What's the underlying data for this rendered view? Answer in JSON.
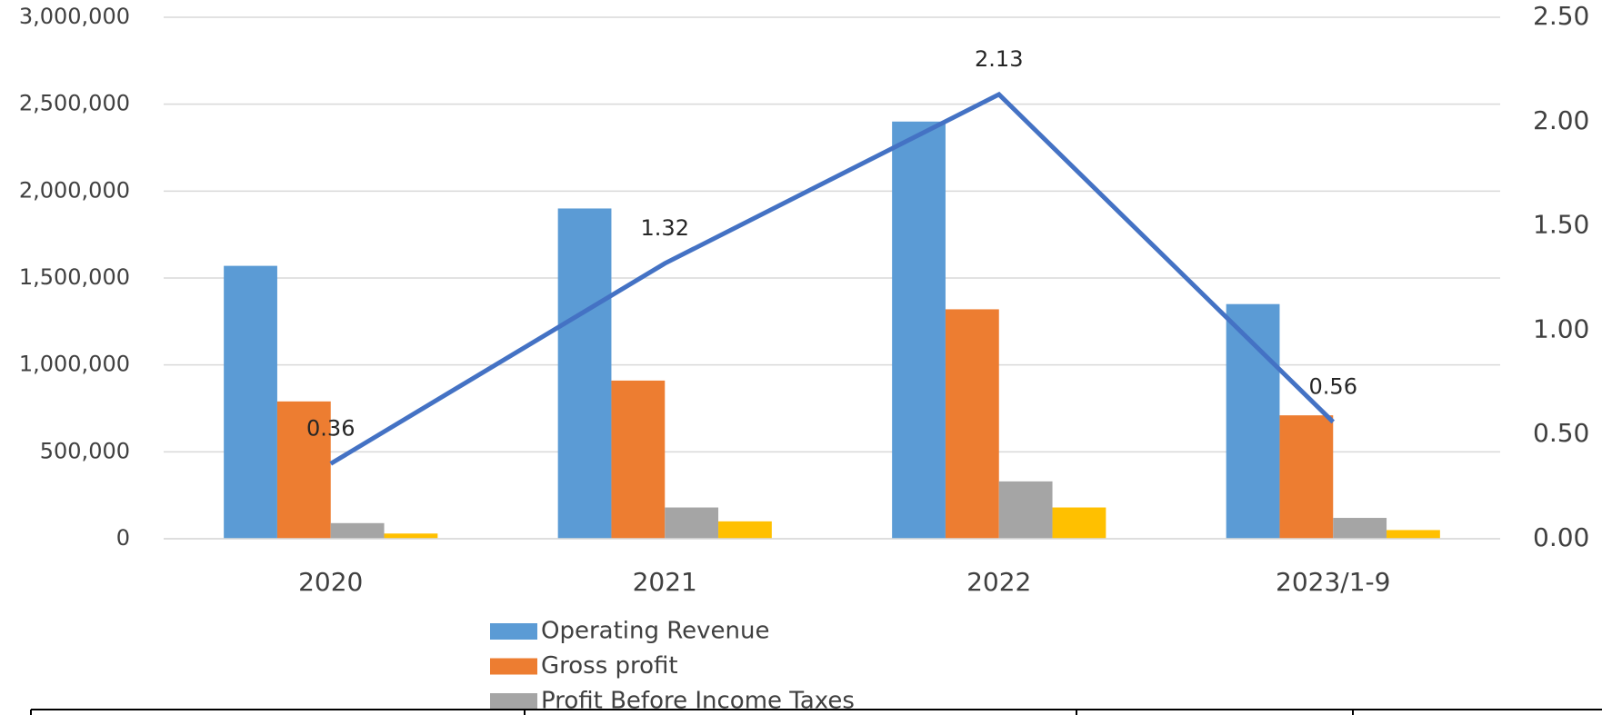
{
  "chart_data": {
    "type": "bar",
    "categories": [
      "2020",
      "2021",
      "2022",
      "2023/1-9"
    ],
    "series": [
      {
        "name": "Operating Revenue",
        "color": "#5b9bd5",
        "values": [
          1570000,
          1900000,
          2400000,
          1350000
        ]
      },
      {
        "name": "Gross profit",
        "color": "#ed7d31",
        "values": [
          790000,
          910000,
          1320000,
          710000
        ]
      },
      {
        "name": "Profit Before Income Taxes",
        "color": "#a5a5a5",
        "values": [
          90000,
          180000,
          330000,
          120000
        ]
      },
      {
        "color": "#ffc000",
        "values": [
          30000,
          100000,
          180000,
          50000
        ]
      },
      {
        "type": "line",
        "axis": "y2",
        "color": "#4472c4",
        "values": [
          0.36,
          1.32,
          2.13,
          0.56
        ],
        "value_labels": [
          "0.36",
          "1.32",
          "2.13",
          "0.56"
        ]
      }
    ],
    "ylim": [
      0,
      3000000
    ],
    "yticks": [
      0,
      {
        "value": 500000,
        "label": "500,000"
      },
      {
        "value": 1000000,
        "label": "1,000,000"
      },
      {
        "value": 1500000,
        "label": "1,500,000"
      },
      {
        "value": 2000000,
        "label": "2,000,000"
      },
      {
        "value": 2500000,
        "label": "2,500,000"
      },
      {
        "value": 3000000,
        "label": "3,000,000"
      }
    ],
    "y2lim": [
      0,
      2.5
    ],
    "y2ticks": [
      {
        "value": 0,
        "label": "0.00"
      },
      {
        "value": 0.5,
        "label": "0.50"
      },
      {
        "value": 1,
        "label": "1.00"
      },
      {
        "value": 1.5,
        "label": "1.50"
      },
      {
        "value": 2,
        "label": "2.00"
      },
      {
        "value": 2.5,
        "label": "2.50"
      }
    ],
    "grid": true
  }
}
